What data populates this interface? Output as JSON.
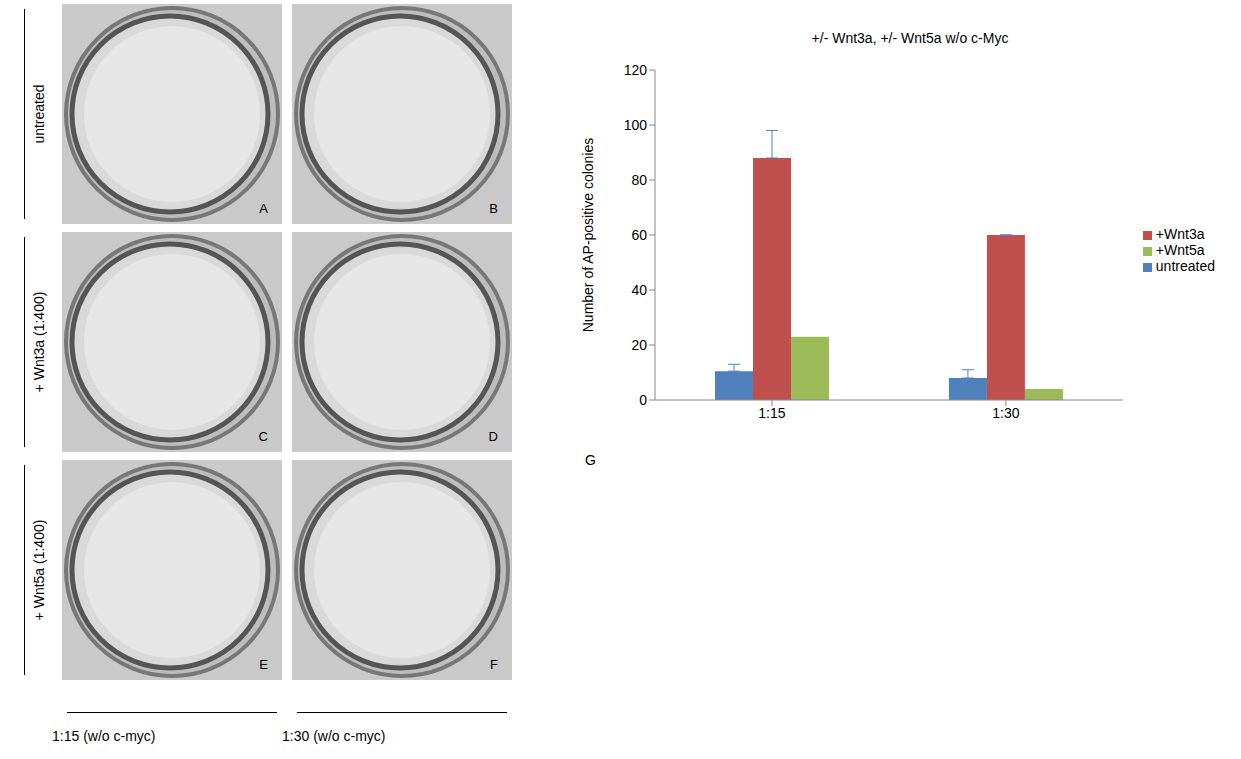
{
  "panels": {
    "row_labels": [
      "untreated",
      "+ Wnt3a (1:400)",
      "+ Wnt5a (1:400)"
    ],
    "column_labels": [
      "1:15 (w/o c-myc)",
      "1:30 (w/o c-myc)"
    ],
    "letters": [
      [
        "A",
        "B"
      ],
      [
        "C",
        "D"
      ],
      [
        "E",
        "F"
      ]
    ],
    "chart_letter": "G"
  },
  "chart_data": {
    "type": "bar",
    "title": "+/- Wnt3a, +/- Wnt5a w/o c-Myc",
    "y_label": "Number of AP-positive colonies",
    "categories": [
      "1:15",
      "1:30"
    ],
    "series": [
      {
        "name": "untreated",
        "color": "#4f81bd",
        "values": [
          10.5,
          8
        ],
        "errors": [
          2.5,
          3
        ]
      },
      {
        "name": "+Wnt3a",
        "color": "#c0504d",
        "values": [
          88,
          60
        ],
        "errors": [
          10,
          0
        ]
      },
      {
        "name": "+Wnt5a",
        "color": "#9bbb59",
        "values": [
          23,
          4
        ]
      }
    ],
    "ylim": [
      0,
      120
    ],
    "yticks": [
      0,
      20,
      40,
      60,
      80,
      100,
      120
    ],
    "grid": false,
    "legend": "right"
  }
}
